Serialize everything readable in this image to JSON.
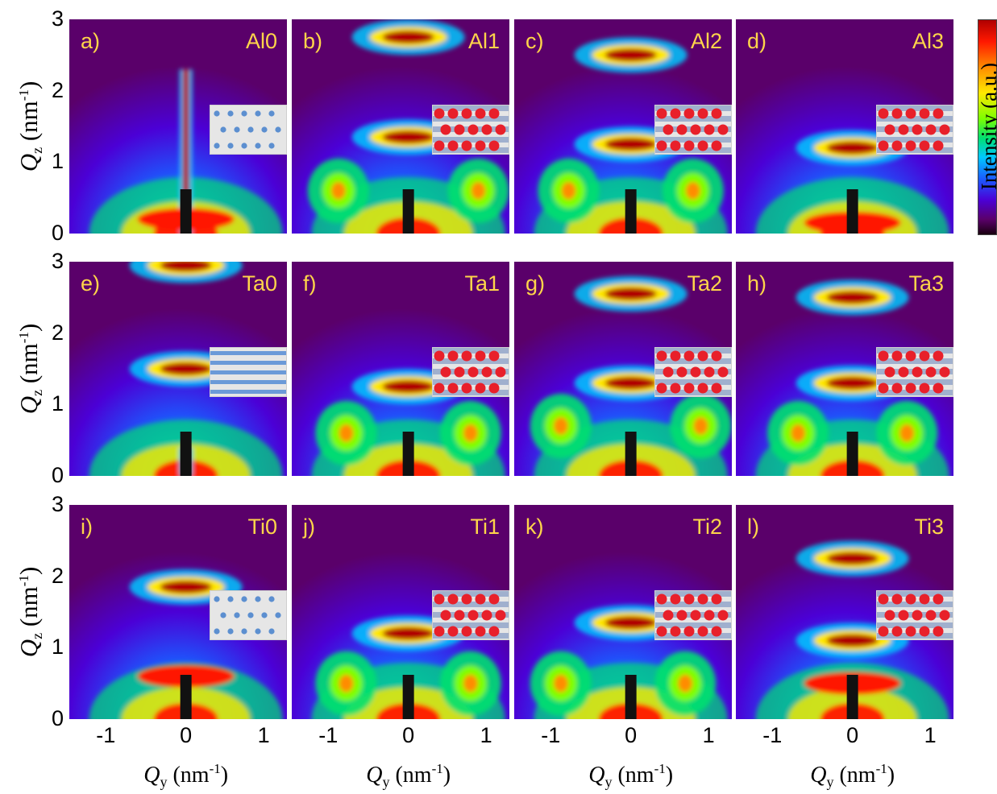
{
  "figure": {
    "colorbar_label": "Intensity (a.u.)",
    "y_axis": {
      "symbol": "Q",
      "subscript": "z",
      "unit_prefix": " (nm",
      "unit_sup": "-1",
      "unit_suffix": ")"
    },
    "x_axis": {
      "symbol": "Q",
      "subscript": "y",
      "unit_prefix": " (nm",
      "unit_sup": "-1",
      "unit_suffix": ")"
    },
    "y_ticks": [
      "0",
      "1",
      "2",
      "3"
    ],
    "x_ticks": [
      "-1",
      "0",
      "1"
    ],
    "colormap": [
      "#1a0010",
      "#5a006a",
      "#4b00d6",
      "#1a5cff",
      "#00c8ff",
      "#00e070",
      "#7dff00",
      "#ffe800",
      "#ff8c00",
      "#ff1800",
      "#b00000"
    ],
    "label_color": "#ffd54a"
  },
  "chart_data": {
    "type": "heatmap",
    "x_range": [
      -1.5,
      1.3
    ],
    "y_range": [
      0,
      3
    ],
    "panels": [
      {
        "label": "a)",
        "sample": "Al0",
        "inset": "dots",
        "features": [
          {
            "y": 2.3,
            "kind": "rod"
          },
          {
            "y": 0.2,
            "kind": "base"
          }
        ]
      },
      {
        "label": "b)",
        "sample": "Al1",
        "inset": "red-hex",
        "features": [
          {
            "y": 2.75,
            "kind": "peak"
          },
          {
            "y": 1.35,
            "kind": "peak"
          },
          {
            "y": 0.6,
            "x": -0.9,
            "kind": "lobe"
          },
          {
            "y": 0.6,
            "x": 0.9,
            "kind": "lobe"
          }
        ]
      },
      {
        "label": "c)",
        "sample": "Al2",
        "inset": "red-hex",
        "features": [
          {
            "y": 2.5,
            "kind": "peak"
          },
          {
            "y": 1.25,
            "kind": "peak"
          },
          {
            "y": 0.6,
            "x": -0.8,
            "kind": "lobe"
          },
          {
            "y": 0.6,
            "x": 0.8,
            "kind": "lobe"
          }
        ]
      },
      {
        "label": "d)",
        "sample": "Al3",
        "inset": "red-hex",
        "features": [
          {
            "y": 1.2,
            "kind": "peak"
          },
          {
            "y": 0.15,
            "kind": "base"
          }
        ]
      },
      {
        "label": "e)",
        "sample": "Ta0",
        "inset": "stripes",
        "features": [
          {
            "y": 2.95,
            "kind": "peak"
          },
          {
            "y": 1.5,
            "kind": "peak"
          },
          {
            "y": 0.4,
            "kind": "rod"
          }
        ]
      },
      {
        "label": "f)",
        "sample": "Ta1",
        "inset": "red-hex",
        "features": [
          {
            "y": 1.25,
            "kind": "peak"
          },
          {
            "y": 0.6,
            "x": -0.8,
            "kind": "lobe"
          },
          {
            "y": 0.6,
            "x": 0.8,
            "kind": "lobe"
          }
        ]
      },
      {
        "label": "g)",
        "sample": "Ta2",
        "inset": "red-hex",
        "features": [
          {
            "y": 2.55,
            "kind": "peak"
          },
          {
            "y": 1.3,
            "kind": "peak"
          },
          {
            "y": 0.7,
            "x": -0.9,
            "kind": "lobe"
          },
          {
            "y": 0.7,
            "x": 0.9,
            "kind": "lobe"
          }
        ]
      },
      {
        "label": "h)",
        "sample": "Ta3",
        "inset": "red-hex",
        "features": [
          {
            "y": 2.5,
            "kind": "peak"
          },
          {
            "y": 1.3,
            "kind": "peak"
          },
          {
            "y": 0.6,
            "x": -0.7,
            "kind": "lobe"
          },
          {
            "y": 0.6,
            "x": 0.7,
            "kind": "lobe"
          }
        ]
      },
      {
        "label": "i)",
        "sample": "Ti0",
        "inset": "dots",
        "features": [
          {
            "y": 1.85,
            "kind": "peak"
          },
          {
            "y": 0.6,
            "kind": "base"
          }
        ]
      },
      {
        "label": "j)",
        "sample": "Ti1",
        "inset": "red-hex",
        "features": [
          {
            "y": 1.2,
            "kind": "peak"
          },
          {
            "y": 0.5,
            "x": -0.8,
            "kind": "lobe"
          },
          {
            "y": 0.5,
            "x": 0.8,
            "kind": "lobe"
          }
        ]
      },
      {
        "label": "k)",
        "sample": "Ti2",
        "inset": "red-hex",
        "features": [
          {
            "y": 1.35,
            "kind": "peak"
          },
          {
            "y": 0.5,
            "x": -0.9,
            "kind": "lobe"
          },
          {
            "y": 0.5,
            "x": 0.7,
            "kind": "lobe"
          }
        ]
      },
      {
        "label": "l)",
        "sample": "Ti3",
        "inset": "red-hex",
        "features": [
          {
            "y": 2.25,
            "kind": "peak"
          },
          {
            "y": 1.1,
            "kind": "peak"
          },
          {
            "y": 0.5,
            "kind": "base"
          }
        ]
      }
    ]
  }
}
